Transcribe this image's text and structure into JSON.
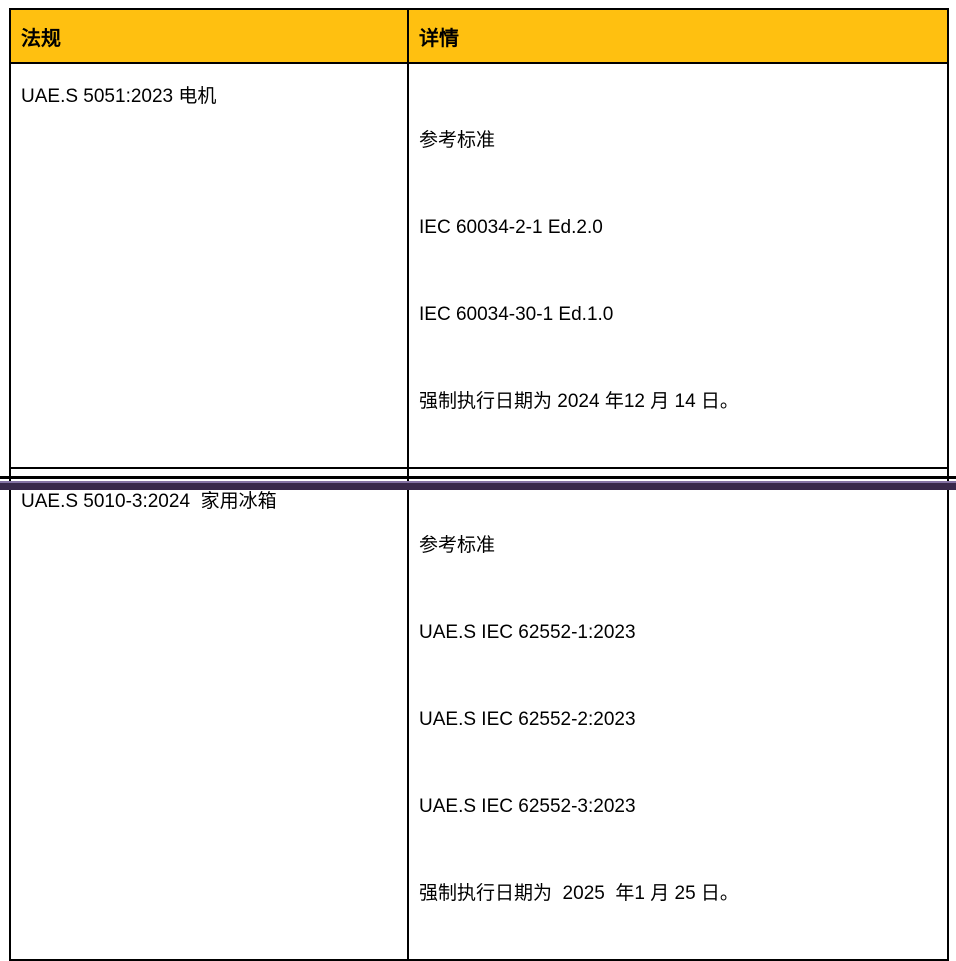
{
  "table": {
    "columns": [
      {
        "label": "法规"
      },
      {
        "label": "详情"
      }
    ],
    "rows": [
      {
        "regulation": "UAE.S 5051:2023 电机",
        "details": [
          "参考标准",
          "IEC 60034-2-1 Ed.2.0",
          "IEC 60034-30-1 Ed.1.0",
          "强制执行日期为 2024 年12 月 14 日。"
        ]
      },
      {
        "regulation": "UAE.S 5010-3:2024  家用冰箱",
        "details": [
          "参考标准",
          "UAE.S IEC 62552-1:2023",
          "UAE.S IEC 62552-2:2023",
          "UAE.S IEC 62552-3:2023",
          "强制执行日期为  2025  年1 月 25 日。"
        ]
      }
    ]
  },
  "colors": {
    "header_bg": "#FFC010",
    "border": "#000000",
    "footer_bar": "#38294B",
    "footer_bar_edge": "#8473A4"
  }
}
